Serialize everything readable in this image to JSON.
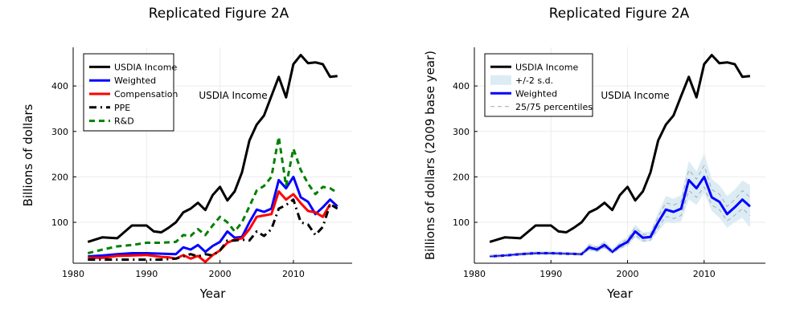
{
  "chart_data": [
    {
      "type": "line",
      "title": "Replicated Figure 2A",
      "xlabel": "Year",
      "ylabel": "Billions of dollars",
      "xlim": [
        1980,
        2018
      ],
      "ylim": [
        10,
        485
      ],
      "xticks": [
        1980,
        1990,
        2000,
        2010
      ],
      "yticks": [
        100,
        200,
        300,
        400
      ],
      "grid": true,
      "legend_position": "top-left",
      "annotation": "USDIA Income",
      "series": [
        {
          "name": "USDIA Income",
          "color": "#000000",
          "style": "solid",
          "x": [
            1982,
            1984,
            1986,
            1988,
            1990,
            1991,
            1992,
            1993,
            1994,
            1995,
            1996,
            1997,
            1998,
            1999,
            2000,
            2001,
            2002,
            2003,
            2004,
            2005,
            2006,
            2007,
            2008,
            2009,
            2010,
            2011,
            2012,
            2013,
            2014,
            2015,
            2016
          ],
          "y": [
            57,
            67,
            65,
            93,
            93,
            80,
            78,
            88,
            100,
            122,
            130,
            143,
            127,
            160,
            178,
            148,
            168,
            210,
            280,
            315,
            335,
            378,
            420,
            375,
            448,
            468,
            450,
            452,
            448,
            420,
            422
          ]
        },
        {
          "name": "Weighted",
          "color": "#0000ff",
          "style": "solid",
          "x": [
            1982,
            1984,
            1986,
            1988,
            1990,
            1992,
            1994,
            1995,
            1996,
            1997,
            1998,
            1999,
            2000,
            2001,
            2002,
            2003,
            2004,
            2005,
            2006,
            2007,
            2008,
            2009,
            2010,
            2011,
            2012,
            2013,
            2014,
            2015,
            2016
          ],
          "y": [
            25,
            27,
            30,
            32,
            32,
            31,
            30,
            45,
            40,
            50,
            35,
            48,
            57,
            80,
            66,
            68,
            100,
            128,
            123,
            130,
            193,
            175,
            200,
            155,
            145,
            118,
            133,
            150,
            135
          ]
        },
        {
          "name": "Compensation",
          "color": "#ff0000",
          "style": "solid",
          "x": [
            1982,
            1984,
            1986,
            1988,
            1990,
            1992,
            1993,
            1994,
            1995,
            1996,
            1997,
            1998,
            1999,
            2000,
            2001,
            2002,
            2003,
            2004,
            2005,
            2006,
            2007,
            2008,
            2009,
            2010,
            2011,
            2012,
            2013,
            2014,
            2015,
            2016
          ],
          "y": [
            22,
            22,
            26,
            27,
            28,
            24,
            23,
            20,
            28,
            20,
            26,
            13,
            28,
            38,
            55,
            62,
            65,
            85,
            112,
            115,
            118,
            168,
            150,
            162,
            142,
            125,
            122,
            112,
            140,
            null
          ]
        },
        {
          "name": "PPE",
          "color": "#000000",
          "style": "dashdot",
          "x": [
            1982,
            1984,
            1986,
            1988,
            1990,
            1992,
            1994,
            1995,
            1996,
            1997,
            1998,
            1999,
            2000,
            2001,
            2002,
            2003,
            2004,
            2005,
            2006,
            2007,
            2008,
            2009,
            2010,
            2011,
            2012,
            2013,
            2014,
            2015,
            2016
          ],
          "y": [
            18,
            18,
            18,
            18,
            18,
            18,
            20,
            25,
            30,
            25,
            30,
            27,
            38,
            60,
            60,
            62,
            60,
            80,
            70,
            85,
            130,
            138,
            150,
            100,
            95,
            72,
            90,
            140,
            130
          ]
        },
        {
          "name": "R&D",
          "color": "#008000",
          "style": "dashed",
          "x": [
            1982,
            1984,
            1986,
            1988,
            1990,
            1992,
            1994,
            1995,
            1996,
            1997,
            1998,
            1999,
            2000,
            2001,
            2002,
            2003,
            2004,
            2005,
            2006,
            2007,
            2008,
            2009,
            2010,
            2011,
            2012,
            2013,
            2014,
            2015,
            2016
          ],
          "y": [
            32,
            40,
            47,
            50,
            55,
            55,
            57,
            72,
            70,
            85,
            72,
            93,
            112,
            100,
            80,
            100,
            135,
            170,
            180,
            200,
            288,
            180,
            262,
            215,
            185,
            162,
            178,
            175,
            165
          ]
        }
      ]
    },
    {
      "type": "line",
      "title": "Replicated Figure 2A",
      "xlabel": "Year",
      "ylabel": "Billions of dollars (2009 base year)",
      "xlim": [
        1980,
        2018
      ],
      "ylim": [
        10,
        485
      ],
      "xticks": [
        1980,
        1990,
        2000,
        2010
      ],
      "yticks": [
        100,
        200,
        300,
        400
      ],
      "grid": true,
      "legend_position": "top-left",
      "annotation": "USDIA Income",
      "series": [
        {
          "name": "USDIA Income",
          "color": "#000000",
          "style": "solid",
          "x": [
            1982,
            1984,
            1986,
            1988,
            1990,
            1991,
            1992,
            1993,
            1994,
            1995,
            1996,
            1997,
            1998,
            1999,
            2000,
            2001,
            2002,
            2003,
            2004,
            2005,
            2006,
            2007,
            2008,
            2009,
            2010,
            2011,
            2012,
            2013,
            2014,
            2015,
            2016
          ],
          "y": [
            57,
            67,
            65,
            93,
            93,
            80,
            78,
            88,
            100,
            122,
            130,
            143,
            127,
            160,
            178,
            148,
            168,
            210,
            280,
            315,
            335,
            378,
            420,
            375,
            448,
            468,
            450,
            452,
            448,
            420,
            422
          ]
        },
        {
          "name": "+/-2 s.d.",
          "color": "#dcecf5",
          "style": "band",
          "x": [
            1982,
            1984,
            1986,
            1988,
            1990,
            1992,
            1994,
            1995,
            1996,
            1997,
            1998,
            1999,
            2000,
            2001,
            2002,
            2003,
            2004,
            2005,
            2006,
            2007,
            2008,
            2009,
            2010,
            2011,
            2012,
            2013,
            2014,
            2015,
            2016
          ],
          "lower": [
            22,
            24,
            27,
            28,
            28,
            28,
            27,
            38,
            34,
            42,
            30,
            40,
            48,
            66,
            56,
            58,
            80,
            100,
            98,
            102,
            150,
            138,
            165,
            125,
            110,
            88,
            100,
            110,
            88
          ],
          "upper": [
            28,
            31,
            34,
            37,
            37,
            35,
            34,
            54,
            48,
            60,
            42,
            58,
            68,
            95,
            78,
            80,
            122,
            158,
            152,
            160,
            235,
            212,
            252,
            195,
            182,
            158,
            172,
            192,
            182
          ]
        },
        {
          "name": "Weighted",
          "color": "#0000ff",
          "style": "solid",
          "x": [
            1982,
            1984,
            1986,
            1988,
            1990,
            1992,
            1994,
            1995,
            1996,
            1997,
            1998,
            1999,
            2000,
            2001,
            2002,
            2003,
            2004,
            2005,
            2006,
            2007,
            2008,
            2009,
            2010,
            2011,
            2012,
            2013,
            2014,
            2015,
            2016
          ],
          "y": [
            25,
            27,
            30,
            32,
            32,
            31,
            30,
            45,
            40,
            50,
            35,
            48,
            57,
            80,
            66,
            68,
            100,
            128,
            123,
            130,
            193,
            175,
            200,
            155,
            145,
            118,
            133,
            150,
            135
          ]
        },
        {
          "name": "25/75 percentiles",
          "color": "#aaaaaa",
          "style": "dashed",
          "x": [
            1982,
            1984,
            1986,
            1988,
            1990,
            1992,
            1994,
            1995,
            1996,
            1997,
            1998,
            1999,
            2000,
            2001,
            2002,
            2003,
            2004,
            2005,
            2006,
            2007,
            2008,
            2009,
            2010,
            2011,
            2012,
            2013,
            2014,
            2015,
            2016
          ],
          "y": [
            27,
            29,
            32,
            34,
            34,
            33,
            32,
            50,
            45,
            55,
            38,
            53,
            63,
            88,
            73,
            75,
            112,
            143,
            138,
            145,
            215,
            195,
            225,
            172,
            162,
            135,
            150,
            170,
            155
          ]
        },
        {
          "name": "25/75 percentiles",
          "color": "#aaaaaa",
          "style": "dashed",
          "x": [
            1982,
            1984,
            1986,
            1988,
            1990,
            1992,
            1994,
            1995,
            1996,
            1997,
            1998,
            1999,
            2000,
            2001,
            2002,
            2003,
            2004,
            2005,
            2006,
            2007,
            2008,
            2009,
            2010,
            2011,
            2012,
            2013,
            2014,
            2015,
            2016
          ],
          "y": [
            23,
            25,
            28,
            30,
            30,
            29,
            28,
            40,
            36,
            45,
            32,
            43,
            51,
            72,
            59,
            61,
            88,
            113,
            108,
            115,
            170,
            155,
            178,
            138,
            128,
            103,
            116,
            130,
            115
          ]
        }
      ]
    }
  ]
}
